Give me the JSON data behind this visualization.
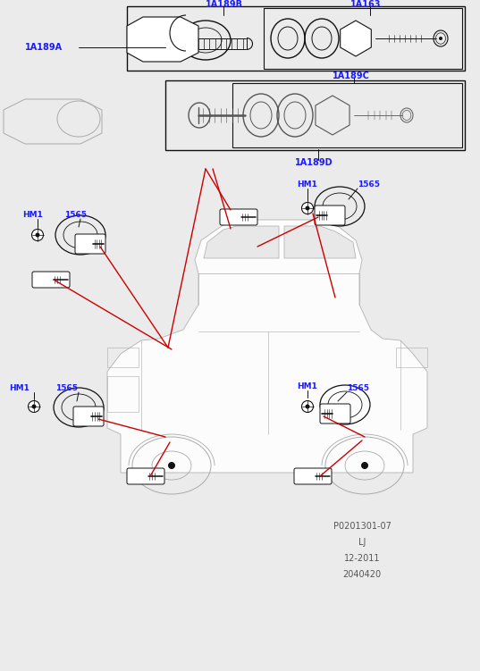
{
  "bg": "#ebebeb",
  "fig_w": 5.37,
  "fig_h": 7.51,
  "dpi": 100,
  "blue": "#1a1aff",
  "red": "#cc0000",
  "black": "#111111",
  "dgray": "#555555",
  "lgray": "#aaaaaa",
  "bottom_lines": [
    "2040420",
    "12-2011",
    "LJ",
    "P0201301-07"
  ]
}
